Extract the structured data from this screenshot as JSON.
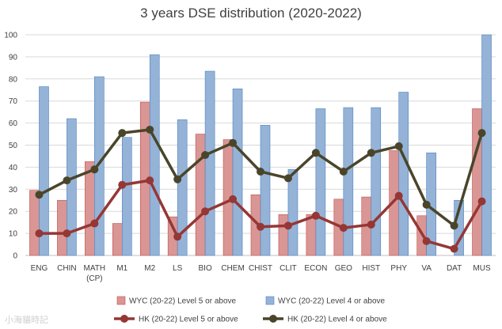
{
  "chart_data": {
    "type": "bar",
    "title": "3 years DSE distribution (2020-2022)",
    "xlabel": "",
    "ylabel": "",
    "ylim": [
      0,
      100
    ],
    "yticks": [
      0,
      10,
      20,
      30,
      40,
      50,
      60,
      70,
      80,
      90,
      100
    ],
    "grid": true,
    "legend_position": "bottom",
    "categories": [
      "ENG",
      "CHIN",
      "MATH\n(CP)",
      "M1",
      "M2",
      "LS",
      "BIO",
      "CHEM",
      "CHIST",
      "CLIT",
      "ECON",
      "GEO",
      "HIST",
      "PHY",
      "VA",
      "DAT",
      "MUS"
    ],
    "series": [
      {
        "name": "WYC (20-22) Level 5 or above",
        "kind": "bar",
        "color": "#d99694",
        "values": [
          29.5,
          25,
          42.5,
          14.5,
          69.5,
          17.5,
          55,
          52.5,
          27.5,
          18.5,
          18.5,
          25.5,
          26.5,
          47.5,
          18,
          0,
          66.5
        ]
      },
      {
        "name": "WYC (20-22) Level 4 or above",
        "kind": "bar",
        "color": "#95b3d7",
        "values": [
          76.5,
          62,
          81,
          53.5,
          91,
          61.5,
          83.5,
          75.5,
          59,
          39,
          66.5,
          67,
          67,
          74,
          46.5,
          25,
          100
        ]
      },
      {
        "name": "HK (20-22) Level 5 or above",
        "kind": "line",
        "color": "#953735",
        "values": [
          10,
          10,
          14.5,
          32,
          34,
          8.5,
          20,
          25.5,
          13,
          13.5,
          18,
          12.5,
          14,
          27,
          6.5,
          3,
          24.5
        ]
      },
      {
        "name": "HK (20-22) Level 4 or above",
        "kind": "line",
        "color": "#4a452a",
        "values": [
          27.5,
          34,
          39,
          55.5,
          57,
          34.5,
          45.5,
          51,
          38,
          35,
          46.5,
          38,
          46.5,
          49.5,
          23,
          13.5,
          55.5
        ]
      }
    ]
  },
  "watermark": "小海貓時記"
}
